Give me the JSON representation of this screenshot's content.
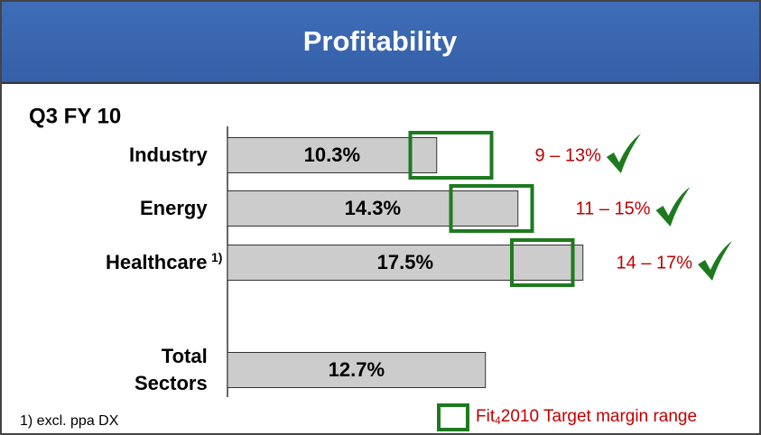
{
  "header": {
    "title": "Profitability"
  },
  "chart_data": {
    "type": "bar",
    "orientation": "horizontal",
    "subtitle": "Q3 FY 10",
    "categories": [
      "Industry",
      "Energy",
      "Healthcare",
      "Total Sectors"
    ],
    "values": [
      10.3,
      14.3,
      17.5,
      12.7
    ],
    "value_labels": [
      "10.3%",
      "14.3%",
      "17.5%",
      "12.7%"
    ],
    "color": "#cccccc",
    "xlim": [
      0,
      26
    ],
    "footnote_marker": "1)",
    "footnote": "1) excl. ppa DX",
    "targets": [
      {
        "low": 9,
        "high": 13,
        "label": "9 – 13%"
      },
      {
        "low": 11,
        "high": 15,
        "label": "11 – 15%"
      },
      {
        "low": 14,
        "high": 17,
        "label": "14 – 17%"
      }
    ],
    "target_color": "#1e7a1e",
    "target_label_color": "#c00000",
    "legend": {
      "text_before": "Fit",
      "subscript": "4",
      "text_after": "2010 Target margin range"
    }
  }
}
